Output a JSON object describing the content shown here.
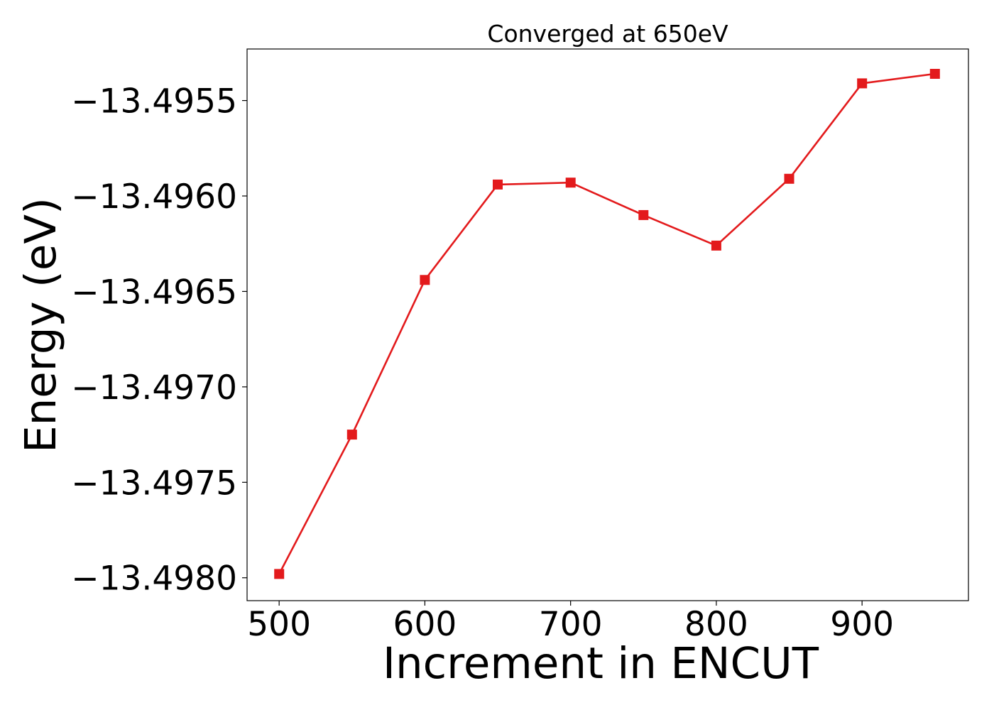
{
  "chart_data": {
    "type": "line",
    "title": "Converged at 650eV",
    "xlabel": "Increment in ENCUT",
    "ylabel": "Energy (eV)",
    "xlim": [
      478,
      973
    ],
    "ylim": [
      -13.49812,
      -13.49523
    ],
    "x_ticks": [
      500,
      600,
      700,
      800,
      900
    ],
    "x_tick_labels": [
      "500",
      "600",
      "700",
      "800",
      "900"
    ],
    "y_ticks": [
      -13.4955,
      -13.496,
      -13.4965,
      -13.497,
      -13.4975,
      -13.498
    ],
    "y_tick_labels": [
      "−13.4955",
      "−13.4960",
      "−13.4965",
      "−13.4970",
      "−13.4975",
      "−13.4980"
    ],
    "grid": false,
    "series": [
      {
        "color": "#e31a1c",
        "marker": "square",
        "x": [
          500,
          550,
          600,
          650,
          700,
          750,
          800,
          850,
          900,
          950
        ],
        "y": [
          -13.49798,
          -13.49725,
          -13.49644,
          -13.49594,
          -13.49593,
          -13.4961,
          -13.49626,
          -13.49591,
          -13.49541,
          -13.49536
        ]
      }
    ]
  }
}
